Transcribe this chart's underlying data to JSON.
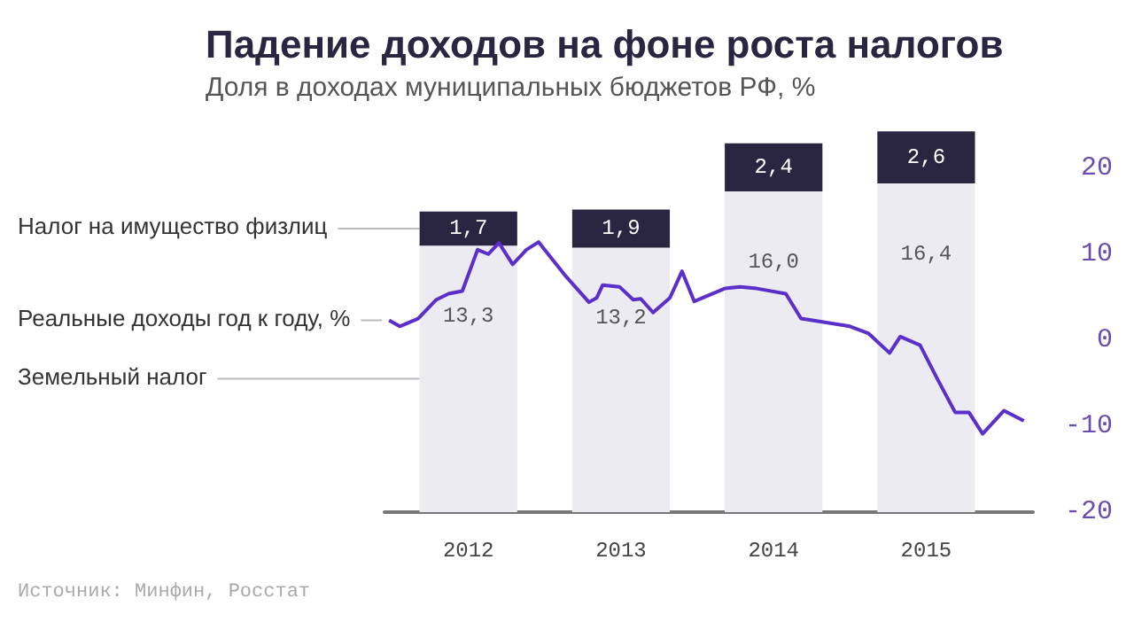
{
  "chart_data": {
    "type": "bar",
    "title": "Падение доходов на фоне роста налогов",
    "subtitle": "Доля в доходах муниципальных бюджетов РФ, %",
    "x": [
      2012,
      2013,
      2014,
      2015
    ],
    "xlim": [
      2011.45,
      2015.7
    ],
    "xticks": [
      2012,
      2013,
      2014,
      2015
    ],
    "stacked": true,
    "legend": false,
    "grid": false,
    "ylim": [
      0,
      19.1
    ],
    "y2lim": [
      -20,
      24.5
    ],
    "y2ticks": [
      -20,
      -10,
      0,
      10,
      20
    ],
    "series": [
      {
        "name": "Земельный налог",
        "color": "#ecebf1",
        "values": [
          13.3,
          13.2,
          16.0,
          16.4
        ],
        "value_labels": [
          "13,3",
          "13,2",
          "16,0",
          "16,4"
        ]
      },
      {
        "name": "Налог на имущество физлиц",
        "color": "#2a2540",
        "values": [
          1.7,
          1.9,
          2.4,
          2.6
        ],
        "value_labels": [
          "1,7",
          "1,9",
          "2,4",
          "2,6"
        ]
      },
      {
        "name": "Реальные доходы год к году, %",
        "type": "line",
        "axis": "y2",
        "color": "#5b2fc9",
        "marker": "none",
        "x": [
          2011.48,
          2011.55,
          2011.67,
          2011.79,
          2011.87,
          2011.96,
          2012.06,
          2012.13,
          2012.2,
          2012.29,
          2012.38,
          2012.46,
          2012.63,
          2012.79,
          2012.84,
          2012.88,
          2012.99,
          2013.08,
          2013.13,
          2013.21,
          2013.32,
          2013.4,
          2013.48,
          2013.68,
          2013.78,
          2013.89,
          2014.08,
          2014.18,
          2014.5,
          2014.62,
          2014.76,
          2014.83,
          2014.96,
          2015.07,
          2015.19,
          2015.28,
          2015.37,
          2015.51,
          2015.64
        ],
        "values": [
          2.3,
          1.6,
          2.5,
          4.7,
          5.4,
          5.7,
          10.5,
          10.0,
          11.3,
          8.8,
          10.5,
          11.4,
          7.6,
          4.4,
          4.9,
          6.4,
          6.2,
          4.7,
          4.8,
          3.2,
          4.9,
          8.0,
          4.5,
          6.0,
          6.2,
          6.0,
          5.4,
          2.5,
          1.6,
          0.8,
          -1.5,
          0.4,
          -0.6,
          -4.4,
          -8.4,
          -8.4,
          -10.9,
          -8.2,
          -9.4
        ]
      }
    ],
    "annotations": [
      "Источник: Минфин, Росстат"
    ]
  }
}
